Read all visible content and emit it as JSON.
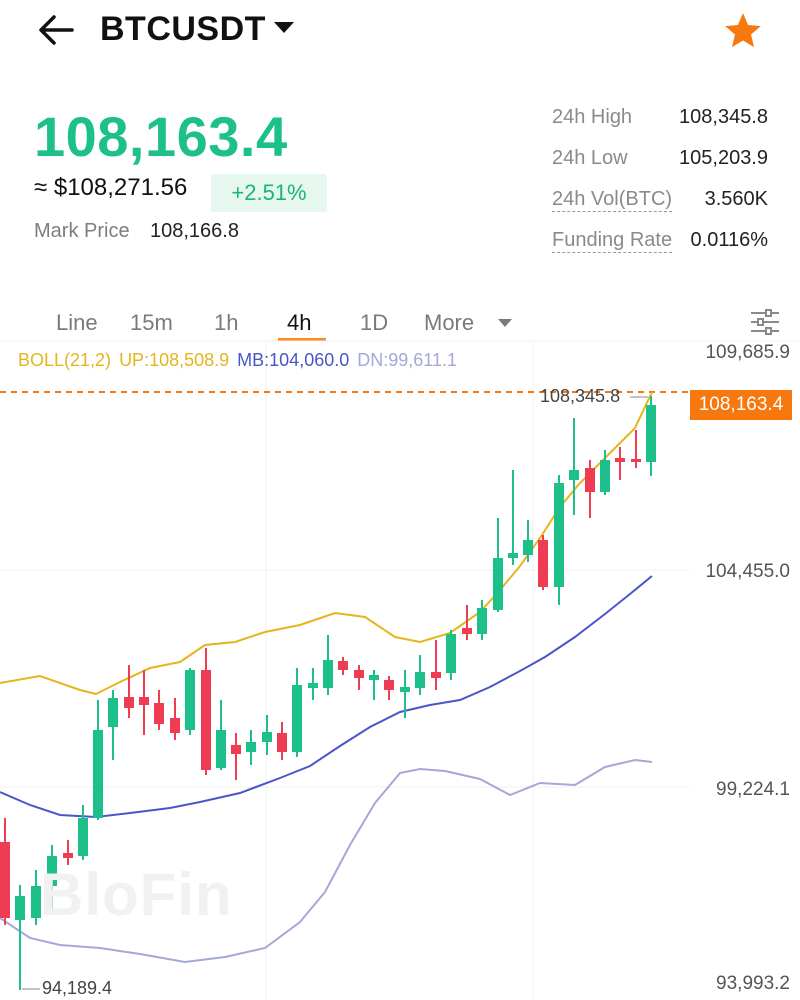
{
  "header": {
    "symbol": "BTCUSDT",
    "back_icon": "back-arrow-icon",
    "dropdown_icon": "caret-down-icon",
    "favorite_icon": "star-icon",
    "favorite_color": "#f7780f"
  },
  "price": {
    "last": "108,163.4",
    "usd_approx": "≈ $108,271.56",
    "change_pct": "+2.51%",
    "mark_price_label": "Mark Price",
    "mark_price_value": "108,166.8",
    "up_color": "#1dbf8a"
  },
  "stats": [
    {
      "label": "24h High",
      "value": "108,345.8"
    },
    {
      "label": "24h Low",
      "value": "105,203.9"
    },
    {
      "label": "24h Vol(BTC)",
      "value": "3.560K"
    },
    {
      "label": "Funding Rate",
      "value": "0.0116%"
    }
  ],
  "tabs": {
    "items": [
      "Line",
      "15m",
      "1h",
      "4h",
      "1D",
      "More"
    ],
    "active": "4h",
    "settings_icon": "chart-settings-icon"
  },
  "indicator": {
    "name": "BOLL(21,2)",
    "up": "UP:108,508.9",
    "mb": "MB:104,060.0",
    "dn": "DN:99,611.1"
  },
  "axis": {
    "ticks": [
      "109,685.9",
      "104,455.0",
      "99,224.1",
      "93,993.2"
    ],
    "last_price_tag": "108,163.4",
    "high_marker": "108,345.8",
    "low_marker": "94,189.4"
  },
  "watermark": "BloFin"
}
